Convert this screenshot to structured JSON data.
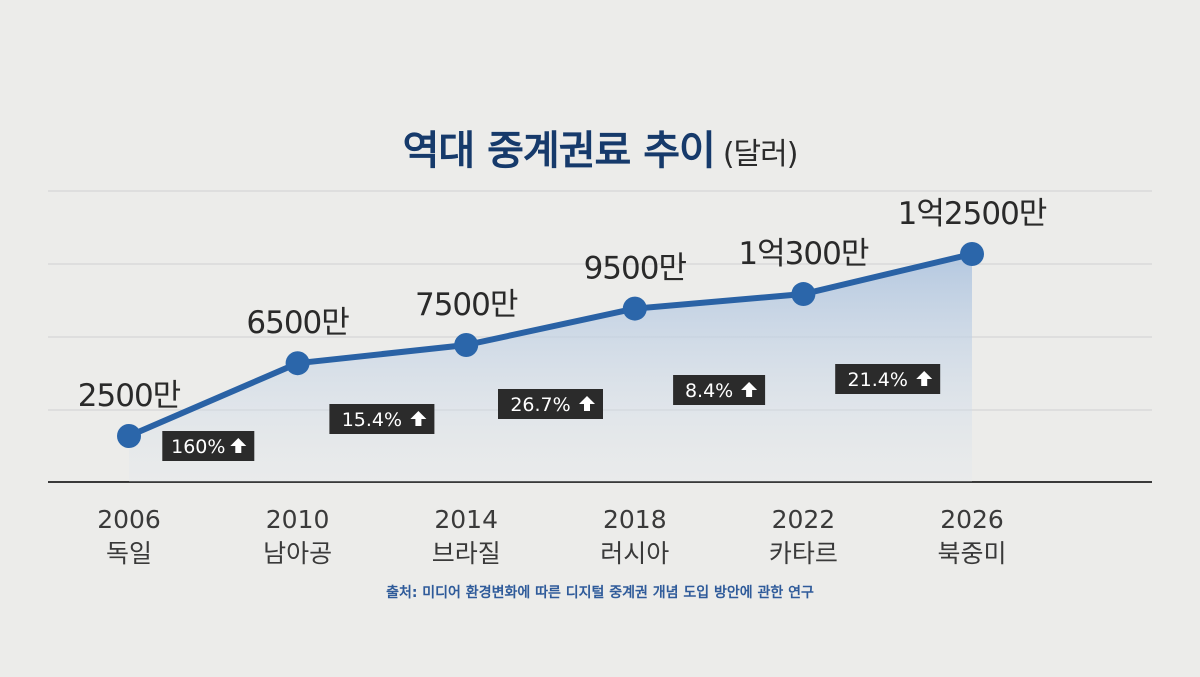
{
  "title": "역대 중계권료 추이",
  "title_unit": "(달러)",
  "source": "출처: 미디어 환경변화에 따른 디지털 중계권 개념 도입 방안에 관한 연구",
  "colors": {
    "line": "#2a62a5",
    "marker": "#2b66aa",
    "area": "#c8d7e8",
    "grid": "#d6d6d6",
    "axis": "#3a3a3a",
    "badge_bg": "#2b2b2b",
    "badge_text": "#ffffff"
  },
  "chart_data": {
    "type": "area",
    "title": "역대 중계권료 추이 (달러)",
    "ylabel": "달러",
    "xlabel": "",
    "x": [
      2006,
      2010,
      2014,
      2018,
      2022,
      2026
    ],
    "categories": [
      "2006",
      "2010",
      "2014",
      "2018",
      "2022",
      "2026"
    ],
    "hosts": [
      "독일",
      "남아공",
      "브라질",
      "러시아",
      "카타르",
      "북중미"
    ],
    "values": [
      25000000,
      65000000,
      75000000,
      95000000,
      103000000,
      125000000
    ],
    "value_labels": [
      "2500만",
      "6500만",
      "7500만",
      "9500만",
      "1억300만",
      "1억2500만"
    ],
    "growth_labels": [
      "160%",
      "15.4%",
      "26.7%",
      "8.4%",
      "21.4%"
    ],
    "growth_icon": "up-arrow-icon",
    "legend": "none",
    "grid": true
  }
}
